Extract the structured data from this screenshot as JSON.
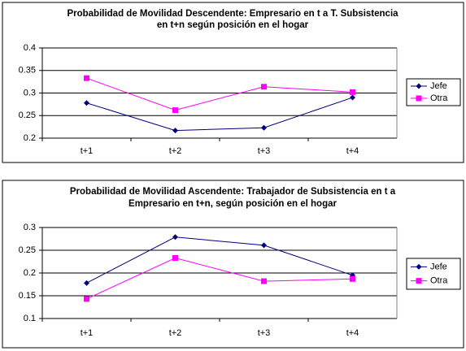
{
  "chart_data": [
    {
      "type": "line",
      "title": [
        "Probabilidad de Movilidad Descendente: Empresario en t a T. Subsistencia",
        "en t+n según posición en el hogar"
      ],
      "categories": [
        "t+1",
        "t+2",
        "t+3",
        "t+4"
      ],
      "series": [
        {
          "name": "Jefe",
          "color": "#000080",
          "marker": "diamond",
          "values": [
            0.278,
            0.217,
            0.223,
            0.29
          ]
        },
        {
          "name": "Otra",
          "color": "#ff00ff",
          "marker": "square",
          "values": [
            0.333,
            0.262,
            0.314,
            0.302
          ]
        }
      ],
      "ylim": [
        0.2,
        0.4
      ],
      "yticks": [
        0.2,
        0.25,
        0.3,
        0.35,
        0.4
      ],
      "grid": true,
      "legend": "right"
    },
    {
      "type": "line",
      "title": [
        "Probabilidad de Movilidad Ascendente: Trabajador de Subsistencia en t a",
        "Empresario en t+n, según posición en el hogar"
      ],
      "categories": [
        "t+1",
        "t+2",
        "t+3",
        "t+4"
      ],
      "series": [
        {
          "name": "Jefe",
          "color": "#000080",
          "marker": "diamond",
          "values": [
            0.178,
            0.279,
            0.261,
            0.195
          ]
        },
        {
          "name": "Otra",
          "color": "#ff00ff",
          "marker": "square",
          "values": [
            0.143,
            0.233,
            0.182,
            0.187
          ]
        }
      ],
      "ylim": [
        0.1,
        0.3
      ],
      "yticks": [
        0.1,
        0.15,
        0.2,
        0.25,
        0.3
      ],
      "grid": true,
      "legend": "right"
    }
  ]
}
